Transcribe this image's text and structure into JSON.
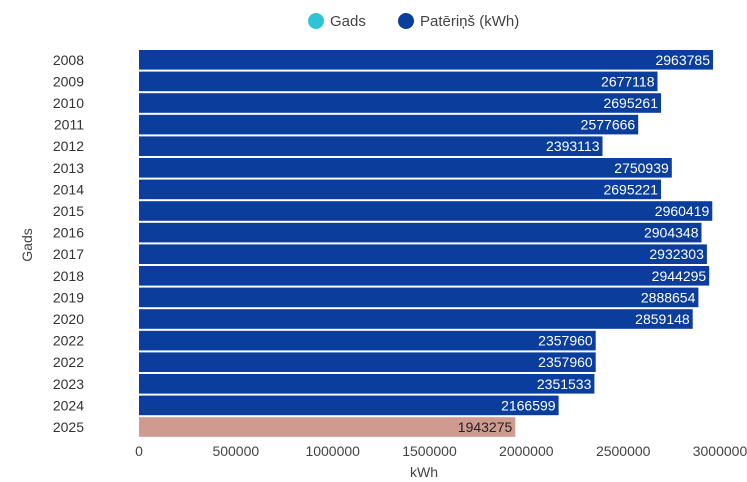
{
  "chart_data": {
    "type": "bar",
    "orientation": "horizontal",
    "xlabel": "kWh",
    "ylabel": "Gads",
    "xlim": [
      0,
      3000000
    ],
    "xticks": [
      0,
      500000,
      1000000,
      1500000,
      2000000,
      2500000,
      3000000
    ],
    "legend": {
      "placement": "top-center",
      "entries": [
        {
          "name": "Gads",
          "color": "#2ec4d6"
        },
        {
          "name": "Patēriņš (kWh)",
          "color": "#0a3d9c"
        }
      ]
    },
    "categories": [
      "2008",
      "2009",
      "2010",
      "2011",
      "2012",
      "2013",
      "2014",
      "2015",
      "2016",
      "2017",
      "2018",
      "2019",
      "2020",
      "2022",
      "2022",
      "2023",
      "2024",
      "2025"
    ],
    "series": [
      {
        "name": "Patēriņš (kWh)",
        "color": "#0a3d9c",
        "values": [
          2963785,
          2677118,
          2695261,
          2577666,
          2393113,
          2750939,
          2695221,
          2960419,
          2904348,
          2932303,
          2944295,
          2888654,
          2859148,
          2357960,
          2357960,
          2351533,
          2166599,
          1943275
        ]
      }
    ],
    "highlight": {
      "category_index": 17,
      "color": "#cf9a90",
      "label_color": "#222222"
    },
    "grid": false
  }
}
